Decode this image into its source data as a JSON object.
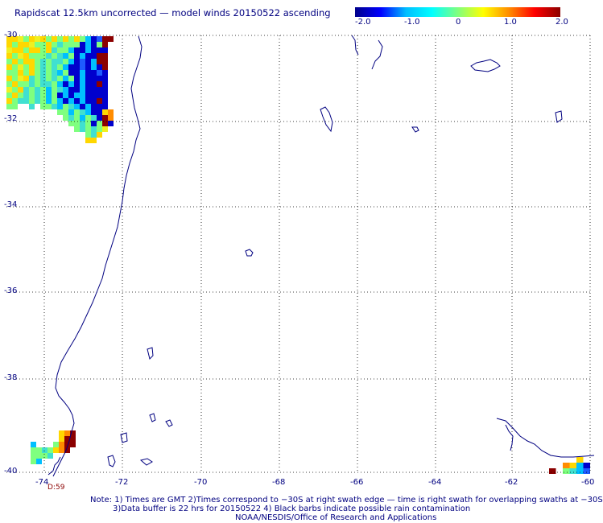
{
  "title": "Rapidscat 12.5km uncorrected — model winds 20150522 ascending",
  "colorbar": {
    "labels": [
      "-2.0",
      "-1.0",
      "0",
      "1.0",
      "2.0"
    ],
    "colors": [
      "#00008b",
      "#0000ff",
      "#00bfff",
      "#00ffff",
      "#7fff7f",
      "#ffff00",
      "#ff8c00",
      "#ff0000",
      "#8b0000"
    ]
  },
  "map": {
    "lon_labels": [
      "-74",
      "-72",
      "-70",
      "-68",
      "-66",
      "-64",
      "-62",
      "-60"
    ],
    "lat_labels": [
      "-30",
      "-32",
      "-34",
      "-36",
      "-38",
      "-40"
    ],
    "grid_style": "dotted",
    "coast_color": "#000080"
  },
  "time_label": "D:59",
  "notes": {
    "line1": "Note: 1) Times are GMT 2)Times correspond to −30S at right swath edge — time is right swath for overlapping swaths at −30S",
    "line2": "3)Data buffer is 22 hrs for 20150522 4) Black barbs indicate possible rain contamination",
    "line3": "NOAA/NESDIS/Office of Research and Applications"
  }
}
